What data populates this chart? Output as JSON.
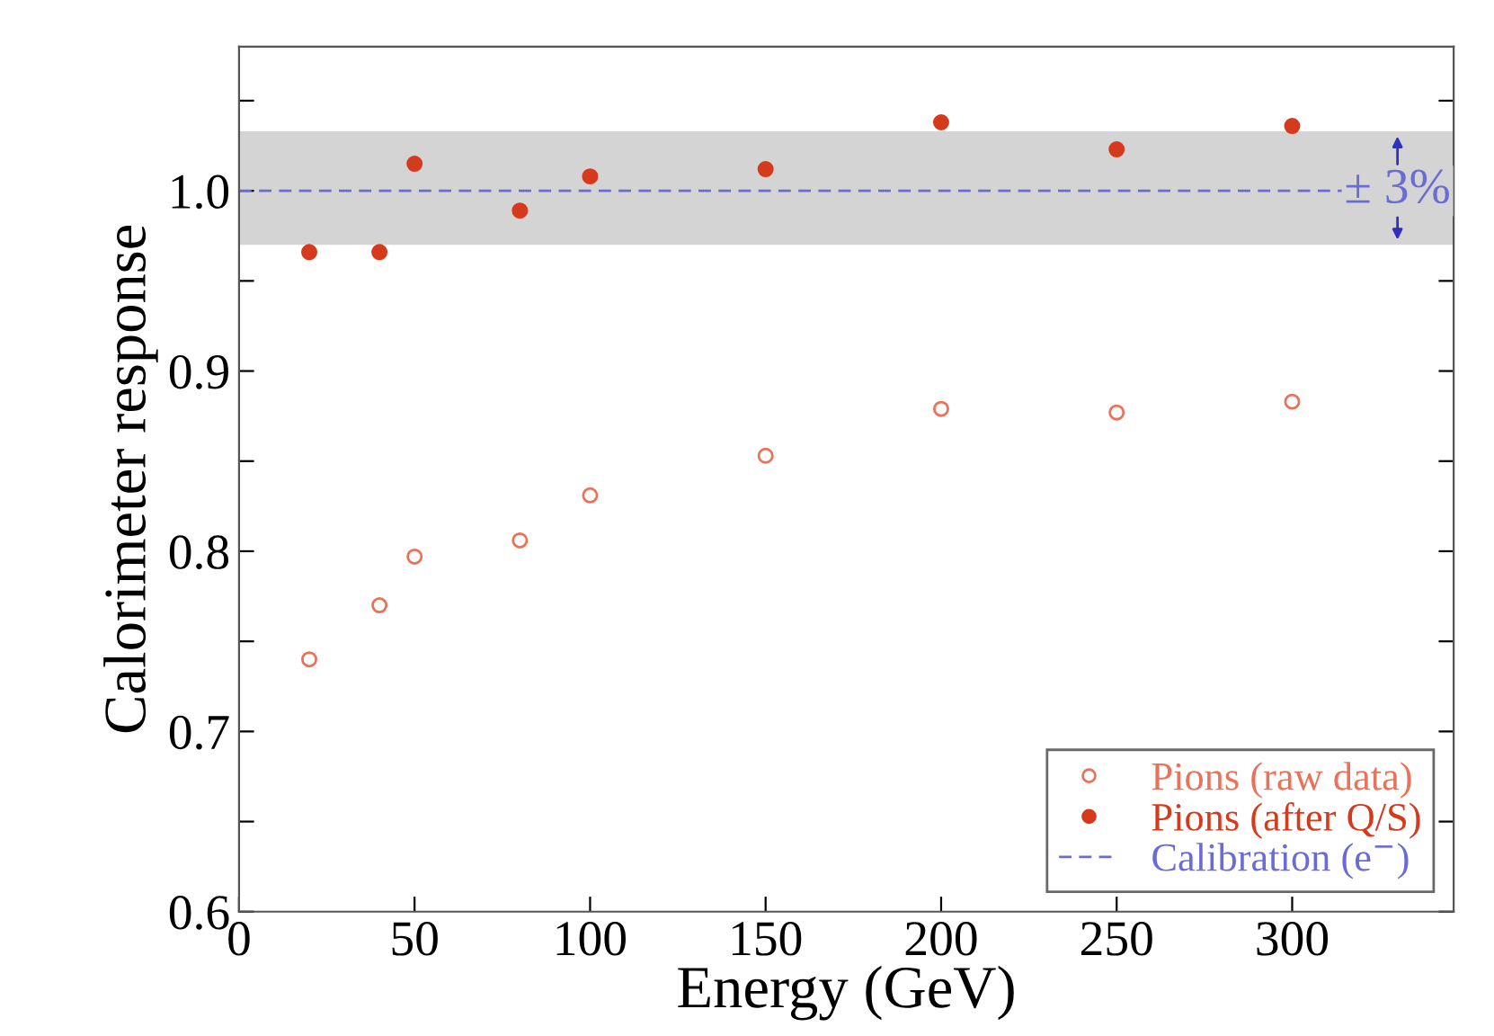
{
  "chart_data": {
    "type": "scatter",
    "xlabel": "Energy (GeV)",
    "ylabel": "Calorimeter response",
    "x": [
      20,
      40,
      50,
      80,
      100,
      150,
      200,
      250,
      300
    ],
    "series": [
      {
        "name": "Pions (raw data)",
        "color": "#e8735a",
        "marker": "open_circle",
        "values": [
          0.74,
          0.77,
          0.797,
          0.806,
          0.831,
          0.853,
          0.879,
          0.877,
          0.883
        ]
      },
      {
        "name": "Pions (after Q/S)",
        "color": "#d63a1c",
        "marker": "circle",
        "values": [
          0.966,
          0.966,
          1.015,
          0.989,
          1.008,
          1.012,
          1.038,
          1.023,
          1.036
        ]
      }
    ],
    "xlim": [
      0,
      346
    ],
    "ylim": [
      0.6,
      1.08
    ],
    "xticks": [
      0,
      50,
      100,
      150,
      200,
      250,
      300
    ],
    "yticks": [
      0.6,
      {
        "value": 0.65,
        "label": null
      },
      {
        "value": 0.7,
        "label": "0.7"
      },
      {
        "value": 0.75,
        "label": null
      },
      {
        "value": 0.8,
        "label": "0.8"
      },
      {
        "value": 0.85,
        "label": null
      },
      {
        "value": 0.9,
        "label": "0.9"
      },
      {
        "value": 0.95,
        "label": null
      },
      {
        "value": 1.0,
        "label": "1.0"
      },
      {
        "value": 1.05,
        "label": null
      }
    ],
    "ref_lines": [
      {
        "axis": "y",
        "value": 1.0,
        "label": "Calibration (e$^{−}$)",
        "color": "#6b6bd6",
        "line_style": "dashed"
      }
    ],
    "bands": [
      {
        "axis": "y",
        "from": 0.97,
        "to": 1.033,
        "color": "#d4d4d4"
      }
    ],
    "annotations": [
      {
        "text": "± 3%",
        "x": 330,
        "y": 1.0
      }
    ],
    "grid": false,
    "legend": "bottom right"
  }
}
